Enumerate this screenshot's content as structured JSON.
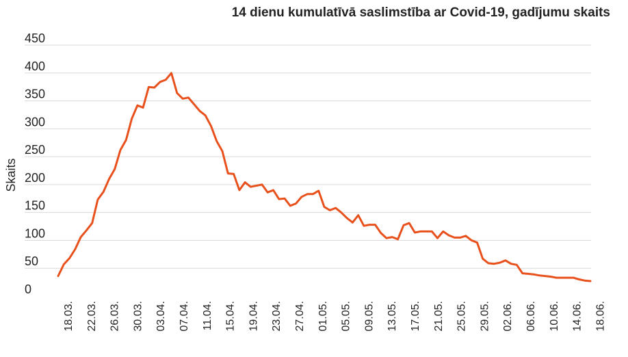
{
  "chart_data": {
    "type": "line",
    "title": "14 dienu kumulatīvā saslimstība ar Covid-19, gadījumu skaits",
    "xlabel": "",
    "ylabel": "Skaits",
    "ylim": [
      0,
      450
    ],
    "yticks": [
      0,
      50,
      100,
      150,
      200,
      250,
      300,
      350,
      400,
      450
    ],
    "xticks": [
      "18.03.",
      "22.03.",
      "26.03.",
      "30.03.",
      "03.04.",
      "07.04.",
      "11.04.",
      "15.04.",
      "19.04.",
      "23.04.",
      "27.04.",
      "01.05.",
      "05.05.",
      "09.05.",
      "13.05.",
      "17.05.",
      "21.05.",
      "25.05.",
      "29.05.",
      "02.06.",
      "06.06.",
      "10.06.",
      "14.06.",
      "18.06."
    ],
    "grid": true,
    "colors": {
      "line": "#e8501c",
      "grid": "#d9d9d9",
      "text": "#222222"
    },
    "series": [
      {
        "values": [
          36,
          57,
          68,
          84,
          106,
          118,
          131,
          173,
          187,
          210,
          228,
          262,
          280,
          318,
          342,
          338,
          375,
          374,
          384,
          388,
          400,
          364,
          354,
          356,
          344,
          332,
          324,
          305,
          278,
          260,
          220,
          219,
          190,
          204,
          196,
          198,
          200,
          186,
          190,
          174,
          175,
          162,
          166,
          178,
          183,
          183,
          189,
          160,
          154,
          158,
          150,
          140,
          132,
          145,
          126,
          128,
          128,
          113,
          104,
          106,
          102,
          127,
          131,
          114,
          116,
          116,
          116,
          104,
          116,
          109,
          105,
          105,
          108,
          100,
          96,
          67,
          59,
          58,
          60,
          64,
          58,
          56,
          41,
          40,
          39,
          37,
          36,
          35,
          33,
          33,
          33,
          33,
          30,
          28,
          27
        ]
      }
    ]
  }
}
